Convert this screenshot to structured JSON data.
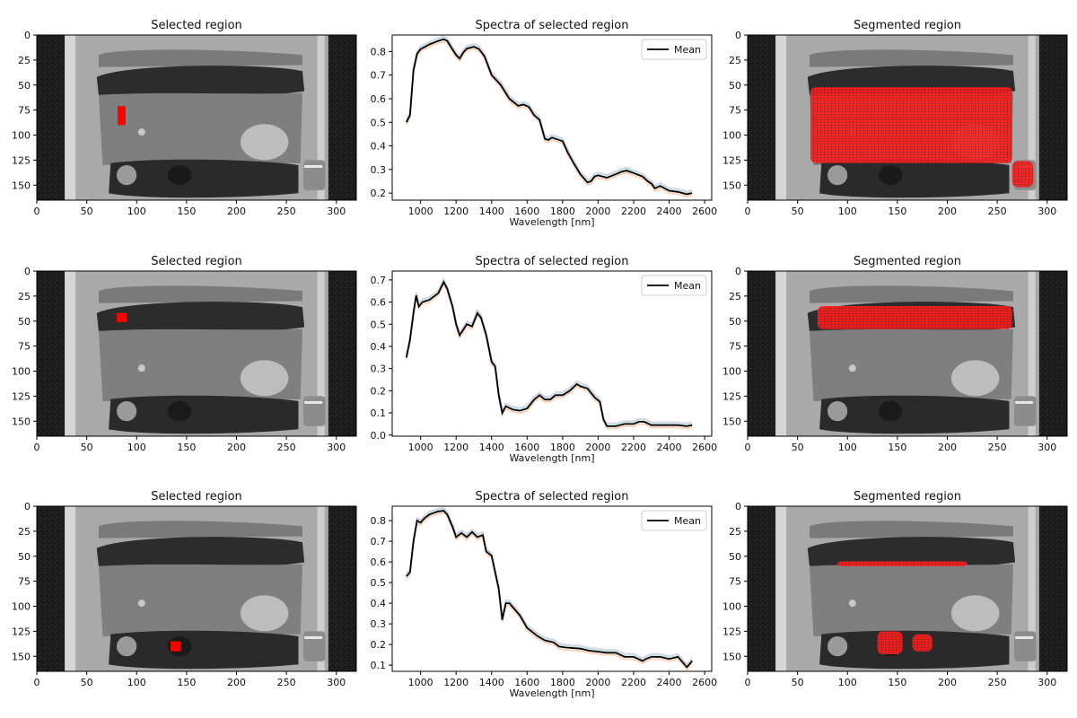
{
  "figure": {
    "colors": {
      "mean_line": "#000000",
      "band_a": "#f4b48a",
      "band_b": "#9ed6d0",
      "band_c": "#c7b0d9",
      "segment": "#ff0000",
      "selection": "#ff0000"
    }
  },
  "rows": [
    {
      "selected": {
        "title": "Selected region",
        "x_ticks": [
          "0",
          "50",
          "100",
          "150",
          "200",
          "250",
          "300"
        ],
        "y_ticks": [
          "0",
          "25",
          "50",
          "75",
          "100",
          "125",
          "150"
        ],
        "xlim": [
          0,
          320
        ],
        "ylim": [
          0,
          165
        ],
        "selection_box_data": {
          "x": [
            81,
            89
          ],
          "y": [
            71,
            90
          ]
        }
      },
      "spectra": {
        "title": "Spectra of selected region",
        "xlabel": "Wavelength [nm]",
        "legend_label": "Mean",
        "x_ticks": [
          "1000",
          "1200",
          "1400",
          "1600",
          "1800",
          "2000",
          "2200",
          "2400",
          "2600"
        ],
        "y_ticks": [
          "0.2",
          "0.3",
          "0.4",
          "0.5",
          "0.6",
          "0.7",
          "0.8"
        ]
      },
      "segmented": {
        "title": "Segmented region",
        "x_ticks": [
          "0",
          "50",
          "100",
          "150",
          "200",
          "250",
          "300"
        ],
        "y_ticks": [
          "0",
          "25",
          "50",
          "75",
          "100",
          "125",
          "150"
        ],
        "segments_data": [
          {
            "x": [
              63,
              265
            ],
            "y": [
              52,
              128
            ]
          },
          {
            "x": [
              265,
              286
            ],
            "y": [
              126,
              152
            ]
          }
        ]
      }
    },
    {
      "selected": {
        "title": "Selected region",
        "x_ticks": [
          "0",
          "50",
          "100",
          "150",
          "200",
          "250",
          "300"
        ],
        "y_ticks": [
          "0",
          "25",
          "50",
          "75",
          "100",
          "125",
          "150"
        ],
        "xlim": [
          0,
          320
        ],
        "ylim": [
          0,
          165
        ],
        "selection_box_data": {
          "x": [
            80,
            90
          ],
          "y": [
            42,
            51
          ]
        }
      },
      "spectra": {
        "title": "Spectra of selected region",
        "xlabel": "Wavelength [nm]",
        "legend_label": "Mean",
        "x_ticks": [
          "1000",
          "1200",
          "1400",
          "1600",
          "1800",
          "2000",
          "2200",
          "2400",
          "2600"
        ],
        "y_ticks": [
          "0.0",
          "0.1",
          "0.2",
          "0.3",
          "0.4",
          "0.5",
          "0.6",
          "0.7"
        ]
      },
      "segmented": {
        "title": "Segmented region",
        "x_ticks": [
          "0",
          "50",
          "100",
          "150",
          "200",
          "250",
          "300"
        ],
        "y_ticks": [
          "0",
          "25",
          "50",
          "75",
          "100",
          "125",
          "150"
        ],
        "segments_data": [
          {
            "x": [
              70,
              265
            ],
            "y": [
              35,
              58
            ]
          }
        ]
      }
    },
    {
      "selected": {
        "title": "Selected region",
        "x_ticks": [
          "0",
          "50",
          "100",
          "150",
          "200",
          "250",
          "300"
        ],
        "y_ticks": [
          "0",
          "25",
          "50",
          "75",
          "100",
          "125",
          "150"
        ],
        "xlim": [
          0,
          320
        ],
        "ylim": [
          0,
          165
        ],
        "selection_box_data": {
          "x": [
            134,
            144
          ],
          "y": [
            135,
            145
          ]
        }
      },
      "spectra": {
        "title": "Spectra of selected region",
        "xlabel": "Wavelength [nm]",
        "legend_label": "Mean",
        "x_ticks": [
          "1000",
          "1200",
          "1400",
          "1600",
          "1800",
          "2000",
          "2200",
          "2400",
          "2600"
        ],
        "y_ticks": [
          "0.1",
          "0.2",
          "0.3",
          "0.4",
          "0.5",
          "0.6",
          "0.7",
          "0.8"
        ]
      },
      "segmented": {
        "title": "Segmented region",
        "x_ticks": [
          "0",
          "50",
          "100",
          "150",
          "200",
          "250",
          "300"
        ],
        "y_ticks": [
          "0",
          "25",
          "50",
          "75",
          "100",
          "125",
          "150"
        ],
        "segments_data": [
          {
            "x": [
              130,
              155
            ],
            "y": [
              125,
              148
            ]
          },
          {
            "x": [
              165,
              185
            ],
            "y": [
              128,
              145
            ]
          },
          {
            "x": [
              90,
              220
            ],
            "y": [
              55,
              60
            ]
          }
        ]
      }
    }
  ],
  "chart_data": [
    {
      "type": "line",
      "title": "Spectra of selected region",
      "xlabel": "Wavelength [nm]",
      "ylabel": "",
      "xlim": [
        840,
        2640
      ],
      "ylim": [
        0.17,
        0.87
      ],
      "legend": "top-right",
      "series": [
        {
          "name": "Mean",
          "x": [
            920,
            940,
            960,
            980,
            1000,
            1050,
            1100,
            1130,
            1150,
            1170,
            1200,
            1220,
            1240,
            1260,
            1300,
            1330,
            1360,
            1400,
            1450,
            1500,
            1550,
            1580,
            1610,
            1640,
            1670,
            1700,
            1720,
            1740,
            1760,
            1800,
            1830,
            1860,
            1900,
            1940,
            1960,
            1980,
            2000,
            2050,
            2100,
            2130,
            2160,
            2200,
            2250,
            2280,
            2300,
            2320,
            2350,
            2400,
            2450,
            2500,
            2530
          ],
          "y": [
            0.5,
            0.53,
            0.72,
            0.79,
            0.81,
            0.83,
            0.845,
            0.852,
            0.845,
            0.82,
            0.785,
            0.77,
            0.795,
            0.812,
            0.82,
            0.81,
            0.78,
            0.7,
            0.66,
            0.6,
            0.57,
            0.575,
            0.565,
            0.53,
            0.51,
            0.43,
            0.425,
            0.435,
            0.43,
            0.42,
            0.37,
            0.33,
            0.28,
            0.245,
            0.25,
            0.27,
            0.275,
            0.265,
            0.28,
            0.29,
            0.295,
            0.285,
            0.27,
            0.25,
            0.24,
            0.22,
            0.23,
            0.21,
            0.205,
            0.195,
            0.2
          ]
        }
      ]
    },
    {
      "type": "line",
      "title": "Spectra of selected region",
      "xlabel": "Wavelength [nm]",
      "ylabel": "",
      "xlim": [
        840,
        2640
      ],
      "ylim": [
        -0.005,
        0.74
      ],
      "legend": "top-right",
      "series": [
        {
          "name": "Mean",
          "x": [
            920,
            940,
            960,
            975,
            990,
            1010,
            1050,
            1100,
            1130,
            1150,
            1180,
            1200,
            1220,
            1260,
            1290,
            1320,
            1340,
            1370,
            1400,
            1420,
            1440,
            1460,
            1480,
            1520,
            1560,
            1600,
            1640,
            1670,
            1700,
            1730,
            1760,
            1800,
            1840,
            1880,
            1900,
            1940,
            1980,
            2010,
            2030,
            2050,
            2100,
            2150,
            2200,
            2230,
            2260,
            2300,
            2350,
            2400,
            2450,
            2500,
            2530
          ],
          "y": [
            0.35,
            0.43,
            0.55,
            0.63,
            0.58,
            0.6,
            0.61,
            0.64,
            0.69,
            0.66,
            0.58,
            0.5,
            0.45,
            0.5,
            0.49,
            0.55,
            0.53,
            0.45,
            0.33,
            0.31,
            0.18,
            0.1,
            0.13,
            0.115,
            0.11,
            0.12,
            0.16,
            0.18,
            0.16,
            0.16,
            0.18,
            0.18,
            0.2,
            0.23,
            0.22,
            0.21,
            0.17,
            0.15,
            0.07,
            0.04,
            0.04,
            0.05,
            0.05,
            0.06,
            0.06,
            0.045,
            0.045,
            0.045,
            0.045,
            0.04,
            0.045
          ]
        }
      ]
    },
    {
      "type": "line",
      "title": "Spectra of selected region",
      "xlabel": "Wavelength [nm]",
      "ylabel": "",
      "xlim": [
        840,
        2640
      ],
      "ylim": [
        0.07,
        0.87
      ],
      "legend": "top-right",
      "series": [
        {
          "name": "Mean",
          "x": [
            920,
            940,
            960,
            980,
            1000,
            1020,
            1050,
            1100,
            1130,
            1150,
            1180,
            1200,
            1230,
            1260,
            1290,
            1320,
            1350,
            1370,
            1400,
            1420,
            1440,
            1460,
            1480,
            1500,
            1520,
            1560,
            1600,
            1660,
            1700,
            1750,
            1780,
            1820,
            1900,
            1950,
            2000,
            2050,
            2100,
            2150,
            2200,
            2250,
            2270,
            2300,
            2350,
            2400,
            2450,
            2480,
            2500,
            2530
          ],
          "y": [
            0.53,
            0.55,
            0.7,
            0.8,
            0.79,
            0.81,
            0.83,
            0.845,
            0.848,
            0.83,
            0.77,
            0.72,
            0.74,
            0.72,
            0.745,
            0.72,
            0.73,
            0.65,
            0.63,
            0.55,
            0.47,
            0.32,
            0.4,
            0.4,
            0.38,
            0.34,
            0.28,
            0.24,
            0.22,
            0.21,
            0.19,
            0.185,
            0.18,
            0.17,
            0.165,
            0.16,
            0.16,
            0.14,
            0.14,
            0.12,
            0.13,
            0.14,
            0.14,
            0.13,
            0.14,
            0.11,
            0.09,
            0.12
          ]
        }
      ]
    }
  ]
}
